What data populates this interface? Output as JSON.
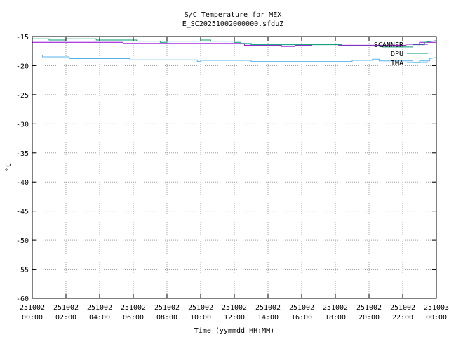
{
  "chart_data": {
    "type": "line",
    "title": "S/C Temperature for MEX",
    "subtitle": "E_SC20251002000000.sfduZ",
    "xlabel": "Time (yymmdd HH:MM)",
    "ylabel": "°C",
    "xlim": [
      0,
      24
    ],
    "ylim": [
      -60,
      -15
    ],
    "grid": true,
    "legend_position": "top-right",
    "yticks": [
      -15,
      -20,
      -25,
      -30,
      -35,
      -40,
      -45,
      -50,
      -55,
      -60
    ],
    "xticks": [
      {
        "value": 0,
        "date": "251002",
        "time": "00:00"
      },
      {
        "value": 2,
        "date": "251002",
        "time": "02:00"
      },
      {
        "value": 4,
        "date": "251002",
        "time": "04:00"
      },
      {
        "value": 6,
        "date": "251002",
        "time": "06:00"
      },
      {
        "value": 8,
        "date": "251002",
        "time": "08:00"
      },
      {
        "value": 10,
        "date": "251002",
        "time": "10:00"
      },
      {
        "value": 12,
        "date": "251002",
        "time": "12:00"
      },
      {
        "value": 14,
        "date": "251002",
        "time": "14:00"
      },
      {
        "value": 16,
        "date": "251002",
        "time": "16:00"
      },
      {
        "value": 18,
        "date": "251002",
        "time": "18:00"
      },
      {
        "value": 20,
        "date": "251002",
        "time": "20:00"
      },
      {
        "value": 22,
        "date": "251002",
        "time": "22:00"
      },
      {
        "value": 24,
        "date": "251003",
        "time": "00:00"
      }
    ],
    "series": [
      {
        "name": "SCANNER",
        "color": "#9400d3",
        "x": [
          0,
          1.0,
          1.0,
          5.4,
          5.4,
          10.6,
          10.6,
          12.6,
          12.6,
          14.8,
          14.8,
          15.6,
          15.6,
          16.6,
          16.6,
          18.2,
          18.2,
          22.2,
          22.2,
          23.0,
          23.0,
          24.0
        ],
        "y": [
          -16.0,
          -16.0,
          -16.0,
          -16.0,
          -16.2,
          -16.2,
          -16.2,
          -16.2,
          -16.5,
          -16.5,
          -16.7,
          -16.7,
          -16.5,
          -16.5,
          -16.3,
          -16.3,
          -16.5,
          -16.5,
          -16.3,
          -16.3,
          -16.0,
          -16.0
        ]
      },
      {
        "name": "DPU",
        "color": "#009e73",
        "x": [
          0,
          1.0,
          1.0,
          2.0,
          2.0,
          3.8,
          3.8,
          6.2,
          6.2,
          7.6,
          7.6,
          8.0,
          8.0,
          10.0,
          10.0,
          10.6,
          10.6,
          12.0,
          12.0,
          12.4,
          12.4,
          13.0,
          13.0,
          18.4,
          18.4,
          20.8,
          20.8,
          22.6,
          22.6,
          23.3,
          23.3,
          24.0
        ],
        "y": [
          -15.4,
          -15.4,
          -15.6,
          -15.6,
          -15.4,
          -15.4,
          -15.6,
          -15.6,
          -15.8,
          -15.8,
          -16.0,
          -16.0,
          -15.8,
          -15.8,
          -15.6,
          -15.6,
          -15.8,
          -15.8,
          -16.0,
          -16.0,
          -16.2,
          -16.2,
          -16.4,
          -16.4,
          -16.6,
          -16.6,
          -16.8,
          -16.8,
          -16.4,
          -16.4,
          -16.0,
          -15.7
        ]
      },
      {
        "name": "IMA",
        "color": "#56b4e9",
        "x": [
          0,
          0.6,
          0.6,
          2.2,
          2.2,
          5.8,
          5.8,
          9.8,
          9.8,
          10.0,
          10.0,
          13.0,
          13.0,
          19.0,
          19.0,
          20.2,
          20.2,
          20.6,
          20.6,
          22.6,
          22.6,
          23.0,
          23.0,
          23.6,
          23.6,
          24.0
        ],
        "y": [
          -18.2,
          -18.2,
          -18.5,
          -18.5,
          -18.8,
          -18.8,
          -19.0,
          -19.0,
          -19.3,
          -19.3,
          -19.1,
          -19.1,
          -19.3,
          -19.3,
          -19.1,
          -19.1,
          -18.9,
          -18.9,
          -19.2,
          -19.2,
          -19.5,
          -19.5,
          -19.2,
          -19.2,
          -18.8,
          -18.6
        ]
      }
    ]
  }
}
